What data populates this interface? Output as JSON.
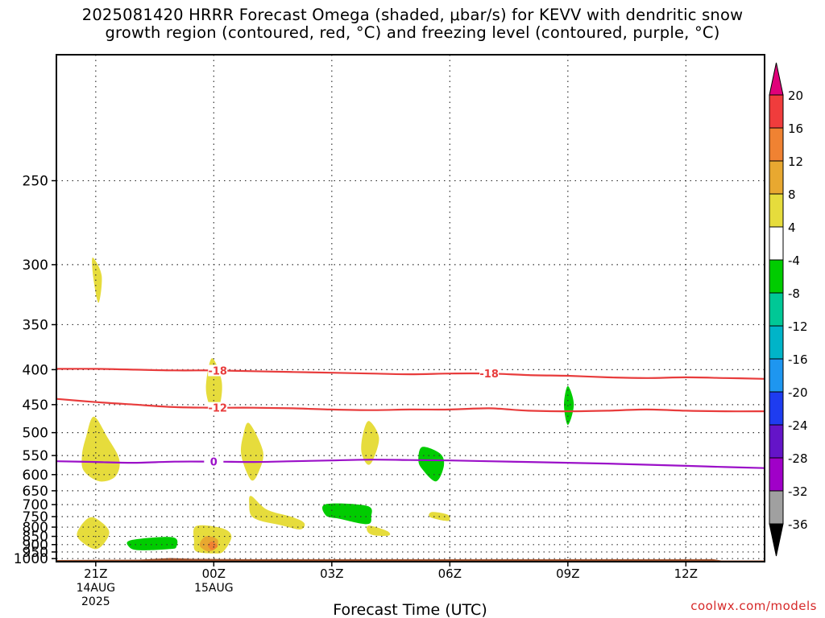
{
  "title": {
    "line1": "2025081420 HRRR Forecast Omega (shaded, μbar/s) for KEVV with dendritic snow",
    "line2": "growth region (contoured, red, °C) and freezing level (contoured, purple, °C)"
  },
  "credit": "coolwx.com/models",
  "chart_data": {
    "type": "contour",
    "xlabel": "Forecast Time (UTC)",
    "x_ticks": [
      {
        "label": "21Z",
        "sub": [
          "14AUG",
          "2025"
        ]
      },
      {
        "label": "00Z",
        "sub": [
          "15AUG"
        ]
      },
      {
        "label": "03Z",
        "sub": []
      },
      {
        "label": "06Z",
        "sub": []
      },
      {
        "label": "09Z",
        "sub": []
      },
      {
        "label": "12Z",
        "sub": []
      }
    ],
    "y_ticks": [
      250,
      300,
      350,
      400,
      450,
      500,
      550,
      600,
      650,
      700,
      750,
      800,
      850,
      900,
      950,
      1000
    ],
    "ylabel": "",
    "y_unit": "hPa",
    "x_range_hours": [
      -1,
      17
    ],
    "y_range_hPa": [
      200,
      1025
    ],
    "grid": "dotted",
    "colorbar": {
      "labels": [
        20,
        16,
        12,
        8,
        4,
        -4,
        -8,
        -12,
        -16,
        -20,
        -24,
        -28,
        -32,
        -36
      ],
      "top_arrow_color": "#e0007a",
      "bottom_arrow_color": "#000000",
      "bins": [
        {
          "range": [
            16,
            20
          ],
          "color": "#f03c3c"
        },
        {
          "range": [
            12,
            16
          ],
          "color": "#f08232"
        },
        {
          "range": [
            8,
            12
          ],
          "color": "#e8a830"
        },
        {
          "range": [
            4,
            8
          ],
          "color": "#e6dc3c"
        },
        {
          "range": [
            -4,
            4
          ],
          "color": "#ffffff"
        },
        {
          "range": [
            -8,
            -4
          ],
          "color": "#00cc00"
        },
        {
          "range": [
            -12,
            -8
          ],
          "color": "#00c896"
        },
        {
          "range": [
            -16,
            -12
          ],
          "color": "#00b4c8"
        },
        {
          "range": [
            -20,
            -16
          ],
          "color": "#1e96f0"
        },
        {
          "range": [
            -24,
            -20
          ],
          "color": "#1e3cf0"
        },
        {
          "range": [
            -28,
            -24
          ],
          "color": "#6414c8"
        },
        {
          "range": [
            -32,
            -28
          ],
          "color": "#a000c8"
        },
        {
          "range": [
            -36,
            -32
          ],
          "color": "#a0a0a0"
        }
      ]
    },
    "contours": [
      {
        "label": "-18",
        "color": "#e83c3c",
        "label_at_hours": [
          3.1,
          10.0
        ],
        "points": [
          [
            -1,
            399
          ],
          [
            0,
            399
          ],
          [
            1,
            400
          ],
          [
            2,
            401
          ],
          [
            3,
            401
          ],
          [
            4,
            402
          ],
          [
            5,
            403
          ],
          [
            6,
            404
          ],
          [
            7,
            405
          ],
          [
            8,
            406
          ],
          [
            9,
            405
          ],
          [
            10,
            405
          ],
          [
            11,
            407
          ],
          [
            12,
            408
          ],
          [
            13,
            410
          ],
          [
            14,
            411
          ],
          [
            15,
            410
          ],
          [
            16,
            411
          ],
          [
            17,
            412
          ]
        ]
      },
      {
        "label": "-12",
        "color": "#e83c3c",
        "label_at_hours": [
          3.1
        ],
        "points": [
          [
            -1,
            441
          ],
          [
            0,
            446
          ],
          [
            1,
            450
          ],
          [
            2,
            454
          ],
          [
            3,
            455
          ],
          [
            4,
            455
          ],
          [
            5,
            456
          ],
          [
            6,
            458
          ],
          [
            7,
            459
          ],
          [
            8,
            458
          ],
          [
            9,
            458
          ],
          [
            10,
            456
          ],
          [
            11,
            460
          ],
          [
            12,
            461
          ],
          [
            13,
            460
          ],
          [
            14,
            458
          ],
          [
            15,
            460
          ],
          [
            16,
            461
          ],
          [
            17,
            461
          ]
        ]
      },
      {
        "label": "0",
        "color": "#9b10c8",
        "label_at_hours": [
          3.0
        ],
        "points": [
          [
            -1,
            564
          ],
          [
            0,
            566
          ],
          [
            1,
            568
          ],
          [
            2,
            565
          ],
          [
            3,
            565
          ],
          [
            4,
            566
          ],
          [
            5,
            564
          ],
          [
            6,
            562
          ],
          [
            7,
            560
          ],
          [
            8,
            561
          ],
          [
            9,
            562
          ],
          [
            10,
            564
          ],
          [
            11,
            566
          ],
          [
            12,
            568
          ],
          [
            13,
            570
          ],
          [
            14,
            573
          ],
          [
            15,
            576
          ],
          [
            16,
            579
          ],
          [
            17,
            582
          ]
        ]
      }
    ],
    "regions": [
      {
        "bin": "4 to 8",
        "color": "#e6dc3c",
        "points": [
          [
            -0.08,
            295
          ],
          [
            0.15,
            308
          ],
          [
            0.07,
            330
          ],
          [
            -0.06,
            310
          ]
        ]
      },
      {
        "bin": "4 to 8",
        "color": "#e6dc3c",
        "points": [
          [
            -0.05,
            470
          ],
          [
            0.3,
            510
          ],
          [
            0.6,
            560
          ],
          [
            0.5,
            605
          ],
          [
            0.1,
            620
          ],
          [
            -0.3,
            590
          ],
          [
            -0.35,
            550
          ],
          [
            -0.25,
            510
          ]
        ]
      },
      {
        "bin": "4 to 8",
        "color": "#e6dc3c",
        "points": [
          [
            -0.1,
            752
          ],
          [
            0.3,
            805
          ],
          [
            0.3,
            860
          ],
          [
            0.0,
            930
          ],
          [
            -0.45,
            860
          ],
          [
            -0.4,
            800
          ]
        ]
      },
      {
        "bin": "4 to 8",
        "color": "#e6dc3c",
        "points": [
          [
            2.95,
            386
          ],
          [
            3.2,
            415
          ],
          [
            3.15,
            450
          ],
          [
            2.95,
            458
          ],
          [
            2.8,
            425
          ]
        ]
      },
      {
        "bin": "4 to 8",
        "color": "#e6dc3c",
        "points": [
          [
            3.9,
            482
          ],
          [
            4.25,
            540
          ],
          [
            4.15,
            590
          ],
          [
            3.95,
            616
          ],
          [
            3.7,
            550
          ],
          [
            3.75,
            505
          ]
        ]
      },
      {
        "bin": "4 to 8",
        "color": "#e6dc3c",
        "points": [
          [
            2.55,
            795
          ],
          [
            3.2,
            805
          ],
          [
            3.45,
            850
          ],
          [
            3.25,
            945
          ],
          [
            3.0,
            960
          ],
          [
            2.55,
            945
          ],
          [
            2.5,
            880
          ]
        ]
      },
      {
        "bin": "4 to 8",
        "color": "#e6dc3c",
        "points": [
          [
            3.95,
            668
          ],
          [
            4.35,
            720
          ],
          [
            5.0,
            752
          ],
          [
            5.3,
            780
          ],
          [
            5.2,
            812
          ],
          [
            4.7,
            790
          ],
          [
            4.2,
            770
          ],
          [
            3.95,
            745
          ],
          [
            3.9,
            700
          ]
        ]
      },
      {
        "bin": "4 to 8",
        "color": "#e6dc3c",
        "points": [
          [
            6.95,
            478
          ],
          [
            7.2,
            510
          ],
          [
            7.05,
            560
          ],
          [
            6.9,
            572
          ],
          [
            6.75,
            540
          ],
          [
            6.8,
            500
          ]
        ]
      },
      {
        "bin": "4 to 8",
        "color": "#e6dc3c",
        "points": [
          [
            6.95,
            793
          ],
          [
            7.4,
            820
          ],
          [
            7.45,
            845
          ],
          [
            7.05,
            843
          ],
          [
            6.9,
            820
          ]
        ]
      },
      {
        "bin": "4 to 8",
        "color": "#e6dc3c",
        "points": [
          [
            8.55,
            730
          ],
          [
            8.95,
            742
          ],
          [
            8.95,
            770
          ],
          [
            8.5,
            752
          ]
        ]
      },
      {
        "bin": "8 to 12",
        "color": "#e8a830",
        "points": [
          [
            2.85,
            848
          ],
          [
            3.1,
            870
          ],
          [
            3.05,
            925
          ],
          [
            2.85,
            945
          ],
          [
            2.65,
            910
          ],
          [
            2.7,
            868
          ]
        ]
      },
      {
        "bin": "12 to 16",
        "color": "#f08232",
        "points": [
          [
            2.95,
            880
          ],
          [
            3.1,
            910
          ],
          [
            2.95,
            935
          ],
          [
            2.85,
            905
          ]
        ]
      },
      {
        "bin": "-8 to -4",
        "color": "#00cc00",
        "points": [
          [
            0.9,
            872
          ],
          [
            1.95,
            855
          ],
          [
            2.05,
            915
          ],
          [
            1.85,
            930
          ],
          [
            1.1,
            938
          ],
          [
            0.85,
            915
          ]
        ]
      },
      {
        "bin": "-8 to -4",
        "color": "#00cc00",
        "points": [
          [
            5.85,
            698
          ],
          [
            6.9,
            705
          ],
          [
            7.0,
            750
          ],
          [
            6.9,
            785
          ],
          [
            6.2,
            760
          ],
          [
            5.85,
            745
          ]
        ]
      },
      {
        "bin": "-8 to -4",
        "color": "#00cc00",
        "points": [
          [
            8.3,
            530
          ],
          [
            8.75,
            545
          ],
          [
            8.85,
            575
          ],
          [
            8.65,
            620
          ],
          [
            8.3,
            585
          ],
          [
            8.2,
            560
          ]
        ]
      },
      {
        "bin": "-8 to -4",
        "color": "#00cc00",
        "points": [
          [
            12.0,
            422
          ],
          [
            12.15,
            450
          ],
          [
            12.0,
            485
          ],
          [
            11.9,
            450
          ]
        ]
      }
    ],
    "terrain": {
      "color": "#a0522d",
      "top_hPa": 1005
    }
  }
}
